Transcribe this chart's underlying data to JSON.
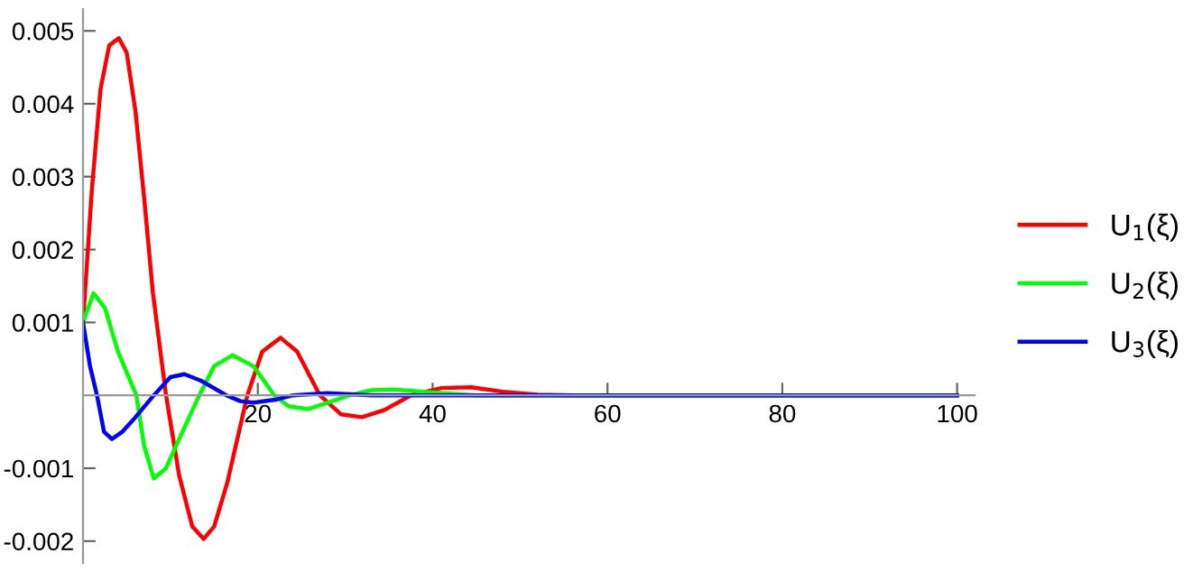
{
  "chart_data": {
    "type": "line",
    "xlim": [
      0,
      102
    ],
    "ylim": [
      -0.0023,
      0.0053
    ],
    "xticks": [
      20,
      40,
      60,
      80,
      100
    ],
    "yticks": [
      -0.002,
      -0.001,
      0.001,
      0.002,
      0.003,
      0.004,
      0.005
    ],
    "grid": false,
    "legend": "right",
    "marker": "none",
    "line_style": "solid",
    "series": [
      {
        "name": "U$_{1}$(ξ)",
        "color": "#ff0000",
        "x": [
          0,
          1,
          2,
          3,
          4.1,
          5,
          6,
          7,
          8,
          9.5,
          11,
          12.5,
          13.8,
          15,
          16.5,
          18.8,
          20.5,
          22.6,
          24.5,
          27.1,
          29.5,
          31.9,
          34.5,
          37.5,
          41,
          44.4,
          48,
          52,
          56,
          100
        ],
        "values": [
          0.001,
          0.0028,
          0.0042,
          0.0048,
          0.0049,
          0.0047,
          0.0039,
          0.0027,
          0.0014,
          0,
          -0.0011,
          -0.0018,
          -0.00197,
          -0.0018,
          -0.0012,
          0,
          0.0006,
          0.00079,
          0.0006,
          0,
          -0.00026,
          -0.0003,
          -0.0002,
          0,
          0.0001,
          0.00011,
          5e-05,
          1e-05,
          0,
          0
        ]
      },
      {
        "name": "U$_{2}$(ξ)",
        "color": "#00ff00",
        "x": [
          0,
          1.2,
          2.5,
          4,
          6.1,
          7,
          8.1,
          9.5,
          11,
          13.3,
          15,
          17.1,
          19.5,
          21.9,
          23.5,
          25.7,
          28,
          30.5,
          33,
          35.5,
          40,
          45,
          100
        ],
        "values": [
          0.001,
          0.0014,
          0.0012,
          0.0006,
          0,
          -0.0007,
          -0.00114,
          -0.001,
          -0.0006,
          0,
          0.0004,
          0.00055,
          0.0004,
          0,
          -0.00015,
          -0.00019,
          -0.0001,
          0,
          7e-05,
          8e-05,
          4e-05,
          0,
          0
        ]
      },
      {
        "name": "U$_{3}$(ξ)",
        "color": "#0000ff",
        "x": [
          0,
          0.8,
          1.6,
          2.4,
          3.3,
          4.5,
          6,
          8.1,
          10,
          11.6,
          13.5,
          16.4,
          18,
          19.5,
          22,
          24,
          28,
          33,
          100
        ],
        "values": [
          0.001,
          0.0004,
          0,
          -0.0005,
          -0.0006,
          -0.0005,
          -0.0003,
          0,
          0.00025,
          0.00029,
          0.0002,
          0,
          -8e-05,
          -0.0001,
          -6e-05,
          0,
          3e-05,
          0,
          0
        ]
      }
    ]
  }
}
